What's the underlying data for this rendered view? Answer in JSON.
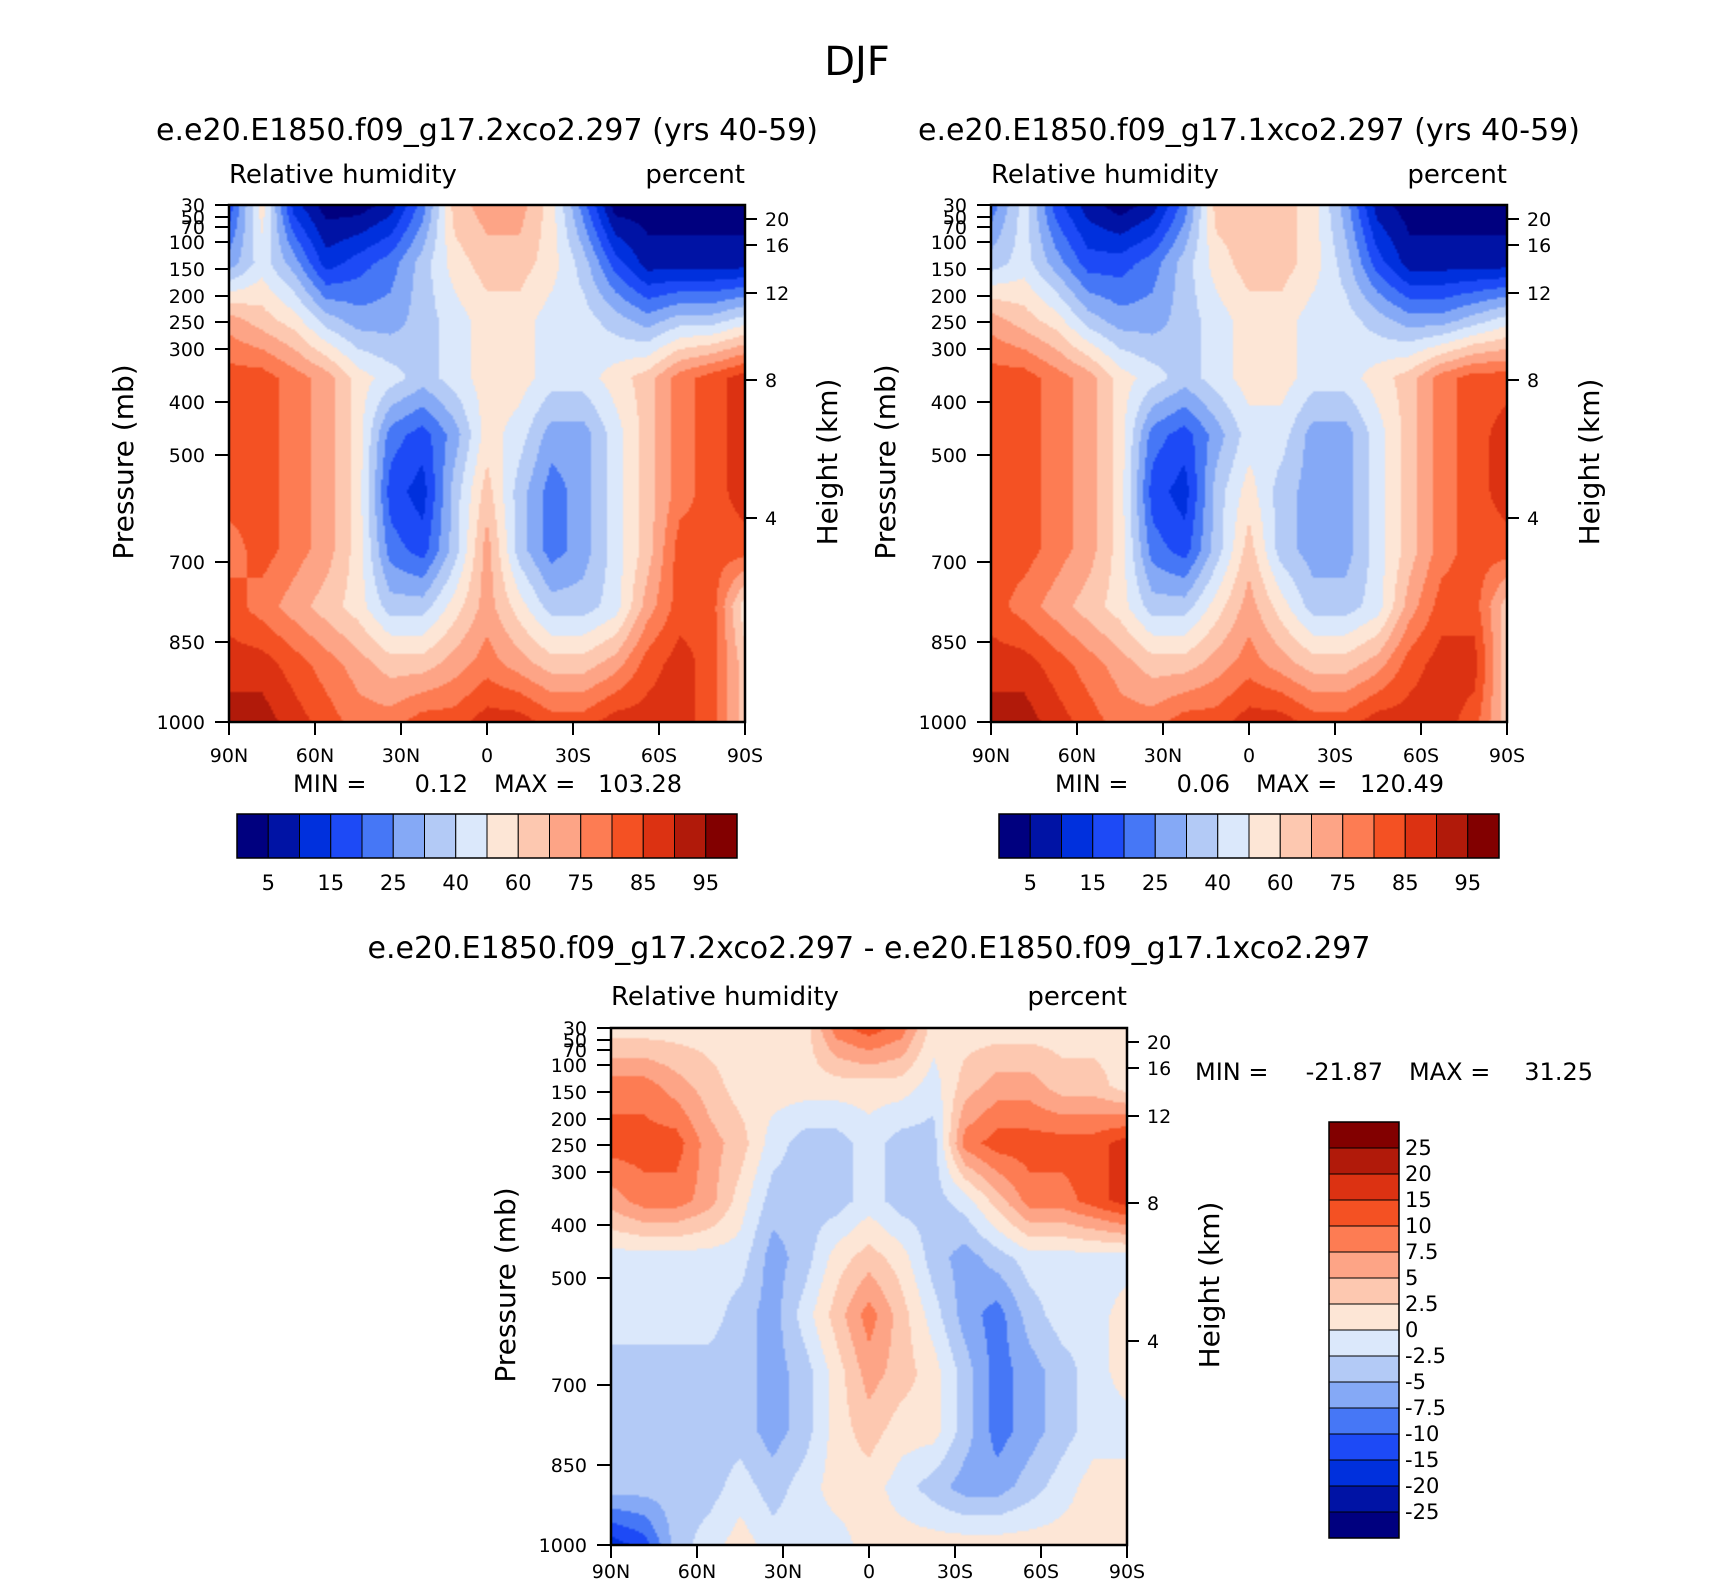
{
  "figure_title": "DJF",
  "chart_data": [
    {
      "type": "heatmap",
      "id": "panel1",
      "case_label": "e.e20.E1850.f09_g17.2xco2.297 (yrs 40-59)",
      "variable": "Relative humidity",
      "units": "percent",
      "ylabel_left": "Pressure (mb)",
      "ylabel_right": "Height (km)",
      "x_ticks": [
        "90N",
        "60N",
        "30N",
        "0",
        "30S",
        "60S",
        "90S"
      ],
      "x_range": [
        90,
        -90
      ],
      "y_ticks": [
        "30",
        "50",
        "70",
        "100",
        "150",
        "200",
        "250",
        "300",
        "400",
        "500",
        "700",
        "850",
        "1000"
      ],
      "y_range": [
        30,
        1000
      ],
      "height_ticks": [
        "20",
        "16",
        "12",
        "8",
        "4"
      ],
      "min_label": "MIN =",
      "min_value": "0.12",
      "max_label": "MAX =",
      "max_value": "103.28",
      "colorbar_labels": [
        "5",
        "15",
        "25",
        "40",
        "60",
        "75",
        "85",
        "95"
      ],
      "contour_levels": [
        5,
        10,
        15,
        20,
        25,
        30,
        40,
        50,
        60,
        70,
        75,
        80,
        85,
        90,
        95
      ],
      "grid": [
        [
          3,
          8,
          2,
          0,
          0,
          1,
          4,
          9,
          10,
          10,
          8,
          4,
          0,
          0,
          0,
          0,
          0
        ],
        [
          5,
          7,
          5,
          2,
          3,
          4,
          6,
          8,
          9,
          9,
          8,
          6,
          3,
          1,
          1,
          1,
          1
        ],
        [
          10,
          9,
          8,
          6,
          5,
          5,
          6,
          7,
          8,
          8,
          7,
          7,
          6,
          5,
          6,
          6,
          7
        ],
        [
          12,
          12,
          11,
          10,
          8,
          7,
          6,
          7,
          8,
          8,
          7,
          7,
          8,
          9,
          11,
          12,
          13
        ],
        [
          12,
          12,
          11,
          10,
          8,
          4,
          3,
          5,
          8,
          7,
          5,
          5,
          7,
          9,
          11,
          12,
          13
        ],
        [
          12,
          12,
          11,
          10,
          8,
          3,
          2,
          6,
          9,
          6,
          4,
          5,
          7,
          9,
          11,
          12,
          13
        ],
        [
          11,
          12,
          11,
          10,
          8,
          4,
          3,
          6,
          10,
          6,
          4,
          5,
          7,
          9,
          12,
          12,
          12
        ],
        [
          12,
          11,
          10,
          9,
          8,
          6,
          6,
          8,
          10,
          8,
          6,
          6,
          7,
          10,
          12,
          12,
          8
        ],
        [
          13,
          13,
          12,
          11,
          10,
          9,
          9,
          10,
          11,
          10,
          9,
          9,
          10,
          12,
          13,
          12,
          9
        ],
        [
          14,
          14,
          13,
          12,
          11,
          11,
          12,
          12,
          13,
          13,
          12,
          12,
          13,
          13,
          13,
          12,
          9
        ]
      ]
    },
    {
      "type": "heatmap",
      "id": "panel2",
      "case_label": "e.e20.E1850.f09_g17.1xco2.297 (yrs 40-59)",
      "variable": "Relative humidity",
      "units": "percent",
      "ylabel_left": "Pressure (mb)",
      "ylabel_right": "Height (km)",
      "x_ticks": [
        "90N",
        "60N",
        "30N",
        "0",
        "30S",
        "60S",
        "90S"
      ],
      "x_range": [
        90,
        -90
      ],
      "y_ticks": [
        "30",
        "50",
        "70",
        "100",
        "150",
        "200",
        "250",
        "300",
        "400",
        "500",
        "700",
        "850",
        "1000"
      ],
      "y_range": [
        30,
        1000
      ],
      "height_ticks": [
        "20",
        "16",
        "12",
        "8",
        "4"
      ],
      "min_label": "MIN =",
      "min_value": "0.06",
      "max_label": "MAX =",
      "max_value": "120.49",
      "colorbar_labels": [
        "5",
        "15",
        "25",
        "40",
        "60",
        "75",
        "85",
        "95"
      ],
      "contour_levels": [
        5,
        10,
        15,
        20,
        25,
        30,
        40,
        50,
        60,
        70,
        75,
        80,
        85,
        90,
        95
      ],
      "grid": [
        [
          4,
          7,
          3,
          1,
          0,
          1,
          4,
          9,
          9,
          9,
          8,
          5,
          1,
          0,
          0,
          0,
          0
        ],
        [
          6,
          7,
          5,
          3,
          3,
          4,
          6,
          8,
          9,
          9,
          8,
          6,
          3,
          1,
          1,
          1,
          1
        ],
        [
          10,
          9,
          8,
          6,
          5,
          5,
          6,
          7,
          8,
          8,
          7,
          7,
          6,
          5,
          5,
          6,
          7
        ],
        [
          12,
          12,
          11,
          10,
          8,
          7,
          6,
          7,
          8,
          8,
          7,
          7,
          8,
          9,
          11,
          12,
          12
        ],
        [
          12,
          12,
          11,
          10,
          8,
          4,
          3,
          5,
          7,
          7,
          5,
          5,
          7,
          9,
          11,
          12,
          13
        ],
        [
          12,
          12,
          11,
          10,
          8,
          3,
          2,
          6,
          8,
          6,
          5,
          5,
          7,
          9,
          11,
          12,
          13
        ],
        [
          12,
          12,
          11,
          10,
          8,
          4,
          3,
          6,
          9,
          6,
          5,
          5,
          7,
          9,
          11,
          12,
          12
        ],
        [
          12,
          11,
          10,
          9,
          8,
          6,
          6,
          8,
          10,
          8,
          6,
          6,
          7,
          10,
          12,
          12,
          9
        ],
        [
          13,
          13,
          12,
          11,
          10,
          9,
          9,
          10,
          11,
          10,
          9,
          9,
          10,
          12,
          13,
          13,
          9
        ],
        [
          14,
          14,
          13,
          12,
          11,
          11,
          12,
          12,
          13,
          13,
          12,
          12,
          13,
          13,
          13,
          12,
          9
        ]
      ]
    },
    {
      "type": "heatmap",
      "id": "diff",
      "case_label": "e.e20.E1850.f09_g17.2xco2.297 - e.e20.E1850.f09_g17.1xco2.297",
      "variable": "Relative humidity",
      "units": "percent",
      "ylabel_left": "Pressure (mb)",
      "ylabel_right": "Height (km)",
      "x_ticks": [
        "90N",
        "60N",
        "30N",
        "0",
        "30S",
        "60S",
        "90S"
      ],
      "x_range": [
        90,
        -90
      ],
      "y_ticks": [
        "30",
        "50",
        "70",
        "100",
        "150",
        "200",
        "250",
        "300",
        "400",
        "500",
        "700",
        "850",
        "1000"
      ],
      "y_range": [
        30,
        1000
      ],
      "height_ticks": [
        "20",
        "16",
        "12",
        "8",
        "4"
      ],
      "min_label": "MIN =",
      "min_value": "-21.87",
      "max_label": "MAX =",
      "max_value": "31.25",
      "colorbar_labels": [
        "25",
        "20",
        "15",
        "10",
        "7.5",
        "5",
        "2.5",
        "0",
        "-2.5",
        "-5",
        "-7.5",
        "-10",
        "-15",
        "-20",
        "-25"
      ],
      "contour_levels": [
        -25,
        -20,
        -15,
        -10,
        -7.5,
        -5,
        -2.5,
        0,
        2.5,
        5,
        7.5,
        10,
        15,
        20,
        25
      ],
      "grid": [
        [
          8,
          8,
          8,
          8,
          8,
          8,
          8,
          11,
          12,
          11,
          8,
          8,
          8,
          8,
          8,
          8,
          8
        ],
        [
          11,
          11,
          10,
          9,
          8,
          8,
          8,
          8,
          8,
          8,
          7,
          9,
          10,
          10,
          9,
          9,
          8
        ],
        [
          12,
          12,
          12,
          10,
          9,
          7,
          6,
          6,
          7,
          6,
          6,
          11,
          12,
          12,
          12,
          12,
          13
        ],
        [
          10,
          11,
          11,
          10,
          8,
          6,
          6,
          6,
          7,
          6,
          6,
          7,
          9,
          11,
          11,
          12,
          13
        ],
        [
          7,
          7,
          7,
          7,
          7,
          5,
          6,
          8,
          9,
          8,
          6,
          5,
          6,
          7,
          7,
          7,
          7
        ],
        [
          7,
          7,
          7,
          7,
          6,
          5,
          7,
          9,
          11,
          9,
          7,
          5,
          4,
          6,
          7,
          7,
          8
        ],
        [
          6,
          6,
          6,
          6,
          6,
          5,
          6,
          8,
          10,
          9,
          8,
          6,
          4,
          5,
          6,
          7,
          8
        ],
        [
          6,
          6,
          6,
          6,
          6,
          5,
          6,
          8,
          9,
          8,
          8,
          6,
          4,
          5,
          6,
          7,
          7
        ],
        [
          6,
          6,
          6,
          6,
          7,
          6,
          7,
          8,
          8,
          7,
          6,
          5,
          5,
          6,
          7,
          8,
          8
        ],
        [
          2,
          3,
          6,
          7,
          8,
          7,
          7,
          7,
          8,
          8,
          8,
          8,
          8,
          8,
          8,
          8,
          8
        ]
      ]
    }
  ],
  "colors": {
    "rh_scale": [
      "#00007f",
      "#0013a5",
      "#0030dd",
      "#1d4af6",
      "#4677f6",
      "#85a9f6",
      "#b3caf6",
      "#dbe8fb",
      "#fde6d6",
      "#fdc8b0",
      "#fda486",
      "#fd7c53",
      "#f45123",
      "#dc3212",
      "#b11a0a",
      "#820000"
    ],
    "diff_scale": [
      "#00007f",
      "#0013a5",
      "#0030dd",
      "#1d4af6",
      "#4677f6",
      "#85a9f6",
      "#b3caf6",
      "#dbe8fb",
      "#fde6d6",
      "#fdc8b0",
      "#fda486",
      "#fd7c53",
      "#f45123",
      "#dc3212",
      "#b11a0a",
      "#820000"
    ]
  }
}
